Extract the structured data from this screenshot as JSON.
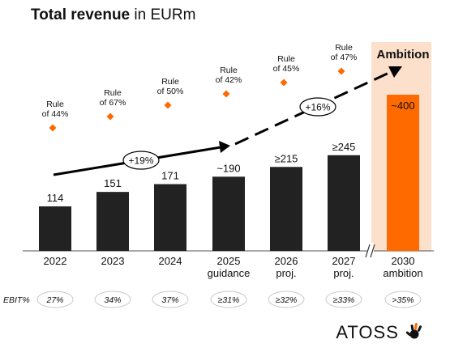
{
  "title": {
    "bold": "Total revenue",
    "rest": " in EURm"
  },
  "ambition_label": "Ambition",
  "ebit_label": "EBIT%",
  "logo_text": "ATOSS",
  "colors": {
    "bar": "#222222",
    "accent": "#ff6a00",
    "highlight": "#fde0cc",
    "text": "#111111"
  },
  "chart_data": {
    "type": "bar",
    "ylim": [
      0,
      450
    ],
    "categories": [
      {
        "year": "2022",
        "sub": ""
      },
      {
        "year": "2023",
        "sub": ""
      },
      {
        "year": "2024",
        "sub": ""
      },
      {
        "year": "2025",
        "sub": "guidance"
      },
      {
        "year": "2026",
        "sub": "proj."
      },
      {
        "year": "2027",
        "sub": "proj."
      },
      {
        "year": "2030",
        "sub": "ambition"
      }
    ],
    "values": [
      114,
      151,
      171,
      190,
      215,
      245,
      400
    ],
    "value_labels": [
      "114",
      "151",
      "171",
      "~190",
      "≥215",
      "≥245",
      "~400"
    ],
    "rule_of": [
      [
        "Rule",
        "of 44%"
      ],
      [
        "Rule",
        "of 67%"
      ],
      [
        "Rule",
        "of 50%"
      ],
      [
        "Rule",
        "of 42%"
      ],
      [
        "Rule",
        "of 45%"
      ],
      [
        "Rule",
        "of 47%"
      ],
      null
    ],
    "ebit_margin": [
      "27%",
      "34%",
      "37%",
      "≥31%",
      "≥32%",
      "≥33%",
      ">35%"
    ],
    "cagr_annotations": [
      {
        "label": "+19%",
        "from": "2022",
        "to": "2025"
      },
      {
        "label": "+16%",
        "from": "2025",
        "to": "2030"
      }
    ]
  }
}
